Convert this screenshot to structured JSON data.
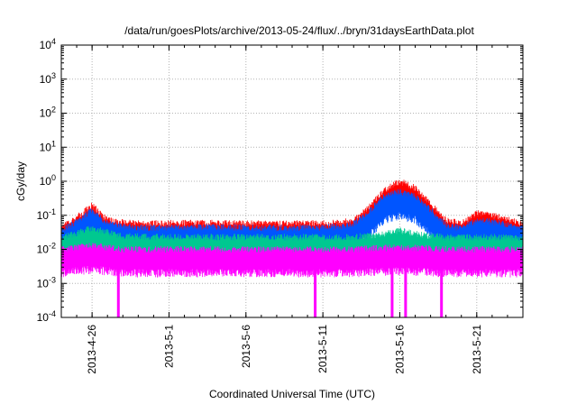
{
  "chart_data": {
    "type": "line",
    "title": "/data/run/goesPlots/archive/2013-05-24/flux/../bryn/31daysEarthData.plot",
    "xlabel": "Coordinated Universal Time (UTC)",
    "ylabel": "cGy/day",
    "xlim": [
      "2013-04-24",
      "2013-05-24"
    ],
    "ylim": [
      0.0001,
      10000
    ],
    "yscale": "log",
    "grid": true,
    "x_ticks": [
      "2013-4-26",
      "2013-5-1",
      "2013-5-6",
      "2013-5-11",
      "2013-5-16",
      "2013-5-21"
    ],
    "y_ticks": [
      {
        "value": 0.0001,
        "base": "10",
        "exp": "-4"
      },
      {
        "value": 0.001,
        "base": "10",
        "exp": "-3"
      },
      {
        "value": 0.01,
        "base": "10",
        "exp": "-2"
      },
      {
        "value": 0.1,
        "base": "10",
        "exp": "-1"
      },
      {
        "value": 1,
        "base": "10",
        "exp": "0"
      },
      {
        "value": 10,
        "base": "10",
        "exp": "1"
      },
      {
        "value": 100,
        "base": "10",
        "exp": "2"
      },
      {
        "value": 1000,
        "base": "10",
        "exp": "3"
      },
      {
        "value": 10000,
        "base": "10",
        "exp": "4"
      }
    ],
    "series": [
      {
        "color": "#ff0000",
        "x": [
          "2013-04-24",
          "2013-04-25",
          "2013-04-26",
          "2013-04-27",
          "2013-04-29",
          "2013-05-03",
          "2013-05-08",
          "2013-05-12",
          "2013-05-13",
          "2013-05-14",
          "2013-05-15",
          "2013-05-16",
          "2013-05-17",
          "2013-05-18",
          "2013-05-19",
          "2013-05-20",
          "2013-05-21",
          "2013-05-22",
          "2013-05-24"
        ],
        "y": [
          0.035,
          0.06,
          0.14,
          0.05,
          0.04,
          0.042,
          0.04,
          0.042,
          0.05,
          0.12,
          0.4,
          0.7,
          0.45,
          0.15,
          0.05,
          0.04,
          0.08,
          0.07,
          0.04
        ]
      },
      {
        "color": "#0055ff",
        "x": [
          "2013-04-24",
          "2013-04-25",
          "2013-04-26",
          "2013-04-27",
          "2013-04-29",
          "2013-05-03",
          "2013-05-08",
          "2013-05-12",
          "2013-05-13",
          "2013-05-14",
          "2013-05-15",
          "2013-05-16",
          "2013-05-17",
          "2013-05-18",
          "2013-05-19",
          "2013-05-20",
          "2013-05-21",
          "2013-05-22",
          "2013-05-24"
        ],
        "y": [
          0.025,
          0.045,
          0.1,
          0.04,
          0.03,
          0.032,
          0.03,
          0.032,
          0.04,
          0.09,
          0.25,
          0.35,
          0.25,
          0.1,
          0.035,
          0.03,
          0.05,
          0.045,
          0.03
        ]
      },
      {
        "color": "#00c890",
        "x": [
          "2013-04-24",
          "2013-04-26",
          "2013-04-28",
          "2013-05-03",
          "2013-05-08",
          "2013-05-13",
          "2013-05-15",
          "2013-05-16",
          "2013-05-17",
          "2013-05-19",
          "2013-05-22",
          "2013-05-24"
        ],
        "y": [
          0.015,
          0.03,
          0.017,
          0.016,
          0.016,
          0.016,
          0.02,
          0.025,
          0.02,
          0.016,
          0.016,
          0.015
        ]
      },
      {
        "color": "#ff00ff",
        "x": [
          "2013-04-24",
          "2013-04-26",
          "2013-04-28",
          "2013-05-03",
          "2013-05-08",
          "2013-05-13",
          "2013-05-16",
          "2013-05-19",
          "2013-05-22",
          "2013-05-24"
        ],
        "y": [
          0.007,
          0.009,
          0.007,
          0.007,
          0.007,
          0.007,
          0.008,
          0.007,
          0.007,
          0.007
        ],
        "dropouts": [
          "2013-04-27T17:00",
          "2013-05-10T12:00",
          "2013-05-15T12:00",
          "2013-05-16T09:00",
          "2013-05-18T17:00"
        ]
      }
    ]
  }
}
